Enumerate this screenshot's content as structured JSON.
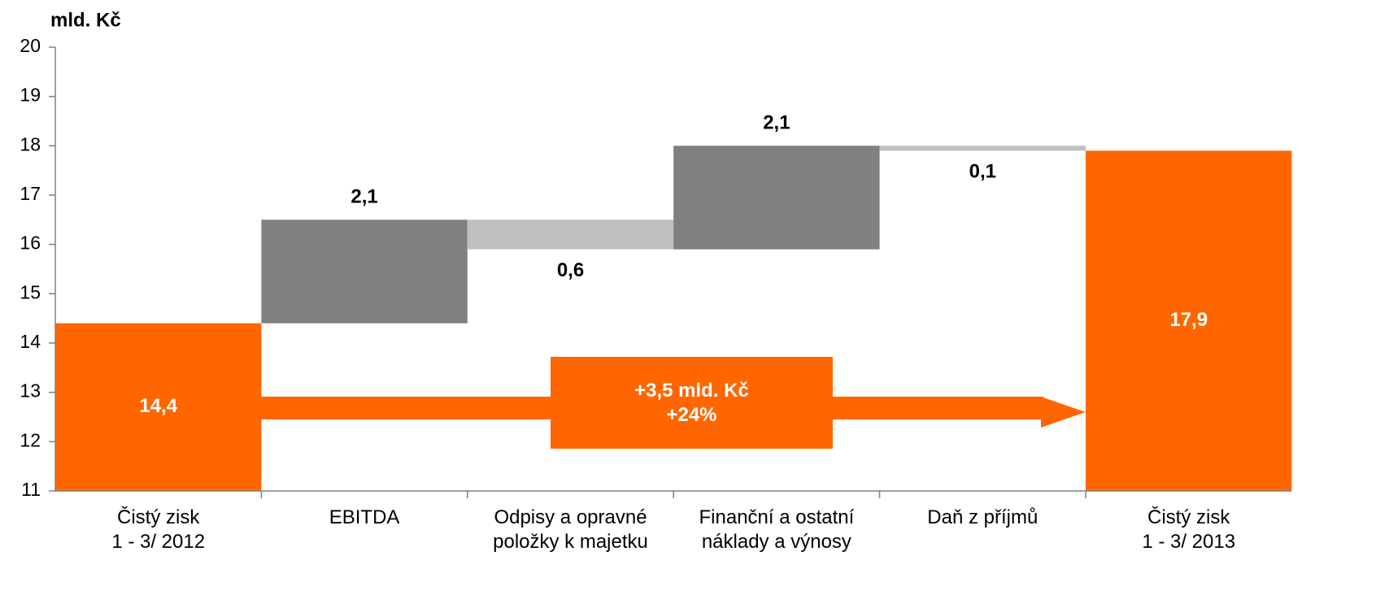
{
  "chart_data": {
    "type": "waterfall",
    "y_label": "mld. Kč",
    "categories": [
      "Čistý zisk\n1 - 3/ 2012",
      "EBITDA",
      "Odpisy a opravné\npoložky k majetku",
      "Finanční a ostatní\nnáklady a výnosy",
      "Daň z příjmů",
      "Čistý zisk\n1 - 3/ 2013"
    ],
    "values": [
      14.4,
      2.1,
      -0.6,
      2.1,
      -0.1,
      17.9
    ],
    "value_labels": [
      "14,4",
      "2,1",
      "0,6",
      "2,1",
      "0,1",
      "17,9"
    ],
    "measures": [
      "total",
      "relative",
      "relative",
      "relative",
      "relative",
      "total"
    ],
    "colors": {
      "total": "#ff6600",
      "increase": "#808080",
      "decrease": "#c0c0c0"
    },
    "ylim": [
      11,
      20
    ],
    "yticks": [
      11,
      12,
      13,
      14,
      15,
      16,
      17,
      18,
      19,
      20
    ],
    "annotation": "+3,5 mld. Kč\n+24%"
  }
}
